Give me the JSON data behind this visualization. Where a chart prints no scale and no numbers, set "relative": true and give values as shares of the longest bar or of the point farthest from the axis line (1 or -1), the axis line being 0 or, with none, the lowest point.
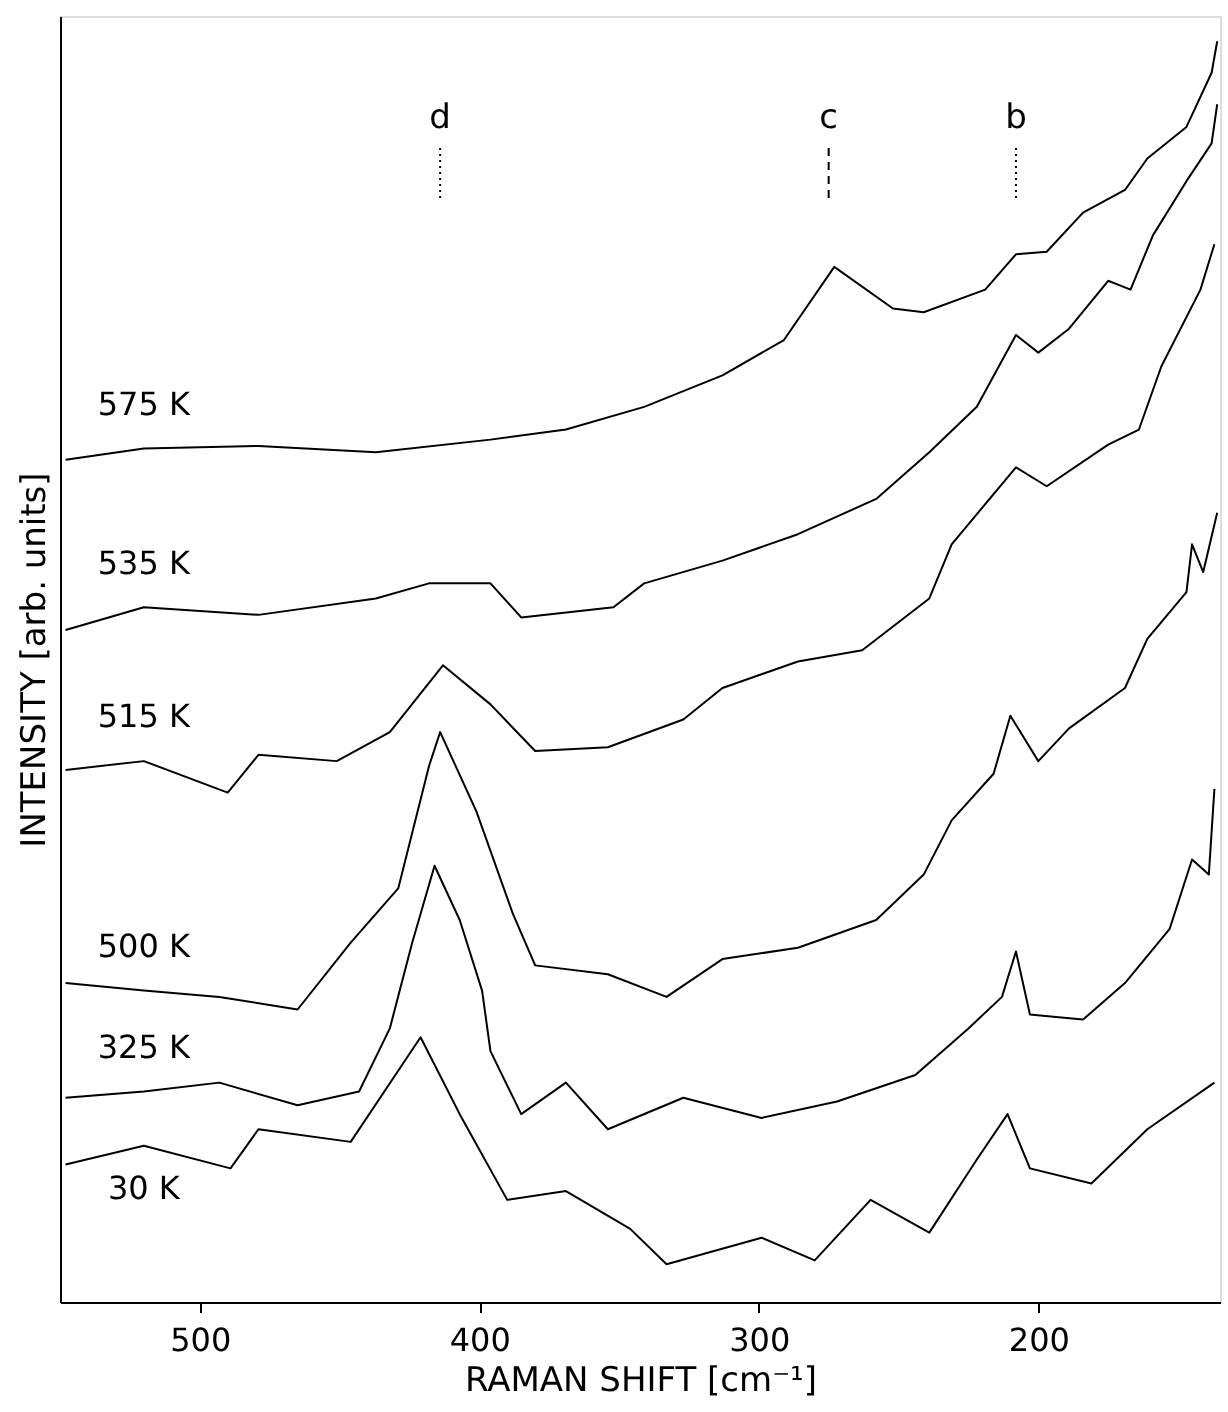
{
  "chart_data": {
    "type": "line",
    "relative": true,
    "xlabel": "RAMAN SHIFT [cm⁻¹]",
    "ylabel": "INTENSITY [arb. units]",
    "xlim": [
      550,
      135
    ],
    "xticks": [
      500,
      400,
      300,
      200
    ],
    "grid": false,
    "marker": "none",
    "line_style": "solid",
    "series": [
      {
        "name": "575 K",
        "color": "#000000",
        "x": [
          548,
          520,
          479,
          437,
          396,
          369,
          341,
          313,
          291,
          273,
          252,
          241,
          219,
          208,
          197,
          184,
          169,
          161,
          147,
          138,
          136
        ],
        "values": [
          0.668,
          0.677,
          0.679,
          0.674,
          0.684,
          0.692,
          0.71,
          0.735,
          0.763,
          0.821,
          0.788,
          0.785,
          0.803,
          0.831,
          0.833,
          0.864,
          0.882,
          0.907,
          0.932,
          0.975,
          1.0
        ]
      },
      {
        "name": "535 K",
        "color": "#000000",
        "x": [
          548,
          520,
          479,
          437,
          418,
          396,
          385,
          352,
          341,
          313,
          286,
          258,
          239,
          222,
          208,
          200,
          189,
          175,
          167,
          159,
          147,
          138,
          136
        ],
        "values": [
          0.533,
          0.551,
          0.545,
          0.558,
          0.57,
          0.57,
          0.543,
          0.551,
          0.57,
          0.588,
          0.609,
          0.637,
          0.674,
          0.71,
          0.767,
          0.753,
          0.772,
          0.81,
          0.803,
          0.846,
          0.889,
          0.919,
          0.95
        ]
      },
      {
        "name": "515 K",
        "color": "#000000",
        "x": [
          548,
          520,
          490,
          479,
          451,
          432,
          413,
          396,
          380,
          354,
          327,
          313,
          286,
          263,
          239,
          231,
          208,
          197,
          175,
          164,
          156,
          142,
          137
        ],
        "values": [
          0.422,
          0.429,
          0.404,
          0.434,
          0.429,
          0.452,
          0.505,
          0.474,
          0.437,
          0.44,
          0.462,
          0.487,
          0.508,
          0.517,
          0.558,
          0.601,
          0.662,
          0.647,
          0.68,
          0.692,
          0.742,
          0.803,
          0.839
        ]
      },
      {
        "name": "500 K",
        "color": "#000000",
        "x": [
          548,
          520,
          493,
          465,
          446,
          429,
          418,
          414,
          401,
          388,
          380,
          354,
          333,
          313,
          286,
          258,
          241,
          231,
          216,
          210,
          200,
          189,
          169,
          161,
          147,
          145,
          141,
          136
        ],
        "values": [
          0.253,
          0.247,
          0.242,
          0.232,
          0.285,
          0.328,
          0.425,
          0.452,
          0.389,
          0.308,
          0.267,
          0.26,
          0.242,
          0.272,
          0.281,
          0.303,
          0.339,
          0.382,
          0.419,
          0.465,
          0.429,
          0.455,
          0.487,
          0.526,
          0.563,
          0.601,
          0.579,
          0.626
        ]
      },
      {
        "name": "325 K",
        "color": "#000000",
        "x": [
          548,
          520,
          493,
          465,
          443,
          432,
          424,
          416,
          407,
          399,
          396,
          385,
          369,
          354,
          327,
          299,
          272,
          244,
          225,
          213,
          208,
          203,
          184,
          169,
          153,
          145,
          139,
          137
        ],
        "values": [
          0.162,
          0.167,
          0.174,
          0.156,
          0.167,
          0.217,
          0.285,
          0.346,
          0.303,
          0.247,
          0.199,
          0.149,
          0.174,
          0.137,
          0.162,
          0.146,
          0.159,
          0.18,
          0.217,
          0.242,
          0.278,
          0.228,
          0.224,
          0.253,
          0.296,
          0.351,
          0.339,
          0.407
        ]
      },
      {
        "name": "30 K",
        "color": "#000000",
        "x": [
          548,
          520,
          489,
          479,
          446,
          421,
          407,
          390,
          369,
          346,
          333,
          299,
          280,
          260,
          239,
          222,
          211,
          203,
          181,
          161,
          137
        ],
        "values": [
          0.109,
          0.124,
          0.106,
          0.137,
          0.127,
          0.21,
          0.149,
          0.081,
          0.088,
          0.058,
          0.03,
          0.051,
          0.033,
          0.081,
          0.055,
          0.113,
          0.149,
          0.106,
          0.094,
          0.137,
          0.174
        ]
      }
    ],
    "ref_lines": [
      {
        "axis": "x",
        "value": 414,
        "label": "d",
        "line_style": "dotted"
      },
      {
        "axis": "x",
        "value": 275,
        "label": "c",
        "line_style": "dashed"
      },
      {
        "axis": "x",
        "value": 208,
        "label": "b",
        "line_style": "dotted"
      }
    ]
  }
}
